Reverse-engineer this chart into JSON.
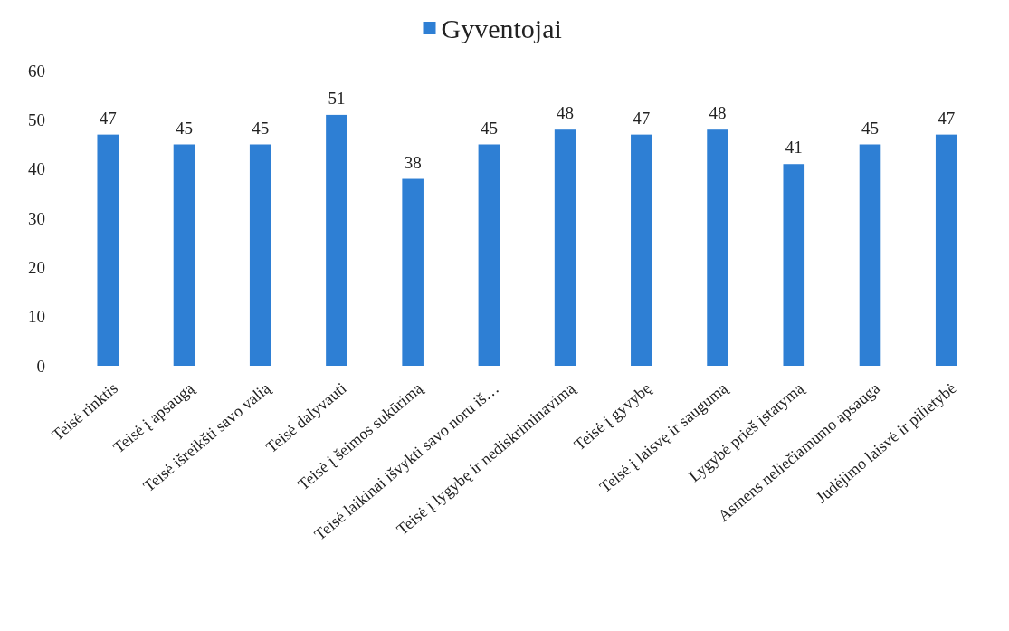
{
  "chart_data": {
    "type": "bar",
    "categories": [
      "Teisė rinktis",
      "Teisė į apsaugą",
      "Teisė išreikšti savo valią",
      "Teisė dalyvauti",
      "Teisė į šeimos sukūrimą",
      "Teisė laikinai išvykti savo noru iš…",
      "Teisė į lygybę ir nediskriminavimą",
      "Teisė į gyvybę",
      "Teisė į laisvę ir saugumą",
      "Lygybė prieš įstatymą",
      "Asmens neliečiamumo apsauga",
      "Judėjimo laisvė ir pilietybė"
    ],
    "series": [
      {
        "name": "Gyventojai",
        "color": "#2e7fd4",
        "values": [
          47,
          45,
          45,
          51,
          38,
          45,
          48,
          47,
          48,
          41,
          45,
          47
        ]
      }
    ],
    "ylim": [
      0,
      60
    ],
    "yticks": [
      0,
      10,
      20,
      30,
      40,
      50,
      60
    ],
    "grid": false,
    "legend": "top",
    "data_labels": true
  }
}
